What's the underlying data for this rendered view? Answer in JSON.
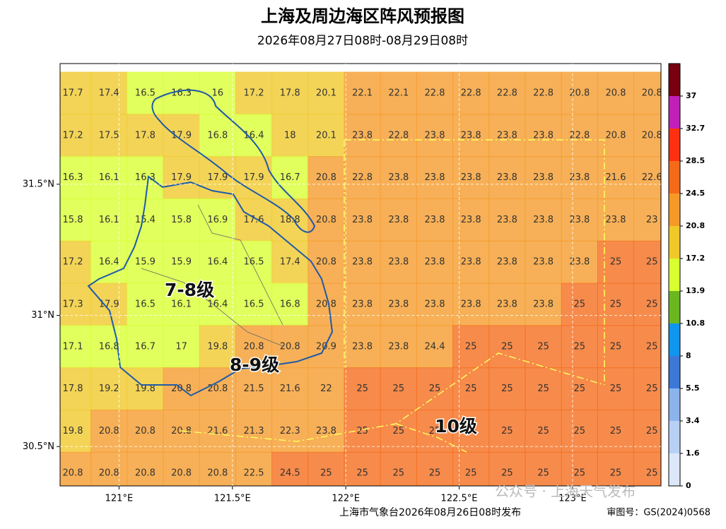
{
  "title": "上海及周边海区阵风预报图",
  "subtitle": "2026年08月27日08时-08月29日08时",
  "map": {
    "xlim": [
      120.74,
      123.39
    ],
    "ylim": [
      30.35,
      31.96
    ],
    "xticks": [
      {
        "value": 121,
        "label": "121°E"
      },
      {
        "value": 121.5,
        "label": "121.5°E"
      },
      {
        "value": 122,
        "label": "122°E"
      },
      {
        "value": 122.5,
        "label": "122.5°E"
      },
      {
        "value": 123,
        "label": "123°E"
      }
    ],
    "yticks": [
      {
        "value": 30.5,
        "label": "30.5°N"
      },
      {
        "value": 31,
        "label": "31°N"
      },
      {
        "value": 31.5,
        "label": "31.5°N"
      }
    ],
    "grid": [
      [
        17.7,
        17.4,
        16.5,
        16.3,
        16,
        17.2,
        17.8,
        20.1,
        22.1,
        22.1,
        22.8,
        22.8,
        22.8,
        22.8,
        20.8,
        20.8,
        20.8
      ],
      [
        17.2,
        17.5,
        17.8,
        17.9,
        16.8,
        16.4,
        18,
        20.1,
        23.8,
        22.8,
        23.8,
        23.8,
        23.8,
        23.8,
        22.8,
        20.8,
        20.8
      ],
      [
        16.3,
        16.1,
        16.3,
        17.9,
        17.9,
        17.9,
        16.7,
        20.8,
        22.8,
        23.8,
        23.8,
        23.8,
        23.8,
        23.8,
        23.8,
        21.6,
        22.6
      ],
      [
        15.8,
        16.1,
        15.4,
        15.8,
        16.9,
        17.6,
        18.8,
        20.8,
        23.8,
        23.8,
        23.8,
        23.8,
        23.8,
        23.8,
        23.8,
        23.8,
        23
      ],
      [
        17.2,
        16.4,
        15.9,
        15.9,
        16.4,
        16.5,
        17.4,
        20.8,
        23.8,
        23.8,
        23.8,
        23.8,
        23.8,
        23.8,
        23.8,
        25,
        25
      ],
      [
        17.3,
        17.9,
        16.5,
        16.1,
        16.4,
        16.5,
        16.8,
        20.8,
        23.8,
        23.8,
        23.8,
        23.8,
        23.8,
        23.8,
        25,
        25,
        25
      ],
      [
        17.1,
        16.8,
        16.7,
        17,
        19.8,
        20.8,
        20.8,
        20.9,
        23.8,
        23.8,
        24.4,
        25,
        25,
        25,
        25,
        25,
        25
      ],
      [
        17.8,
        19.2,
        19.8,
        20.8,
        20.8,
        21.5,
        21.6,
        22,
        25,
        25,
        25,
        25,
        25,
        25,
        25,
        25,
        25
      ],
      [
        19.8,
        20.8,
        20.8,
        20.8,
        21.6,
        21.3,
        22.3,
        23.8,
        25,
        25,
        25,
        25,
        25,
        25,
        25,
        25,
        25
      ],
      [
        20.8,
        20.8,
        20.8,
        20.8,
        20.8,
        22.5,
        24.5,
        25,
        25,
        25,
        25,
        25,
        25,
        25,
        25,
        25,
        25
      ]
    ],
    "zone_labels": [
      "7-8级",
      "8-9级",
      "10级"
    ]
  },
  "colorbar": {
    "levels": [
      0,
      1.6,
      3.4,
      5.5,
      8,
      10.8,
      13.9,
      17.2,
      20.8,
      24.5,
      28.5,
      32.7,
      37
    ],
    "colors": [
      "#dce8fa",
      "#b8d0f4",
      "#8cb4ec",
      "#3c78d8",
      "#0f96ee",
      "#6ab820",
      "#d8ff30",
      "#f0c828",
      "#f59a28",
      "#f56a18",
      "#ff3010",
      "#c020b8",
      "#780010"
    ]
  },
  "footer": {
    "issuer": "上海市气象台2026年08月26日08时发布",
    "approval": "审图号：GS(2024)0568"
  },
  "watermark": "公众号 · 上海天气发布"
}
